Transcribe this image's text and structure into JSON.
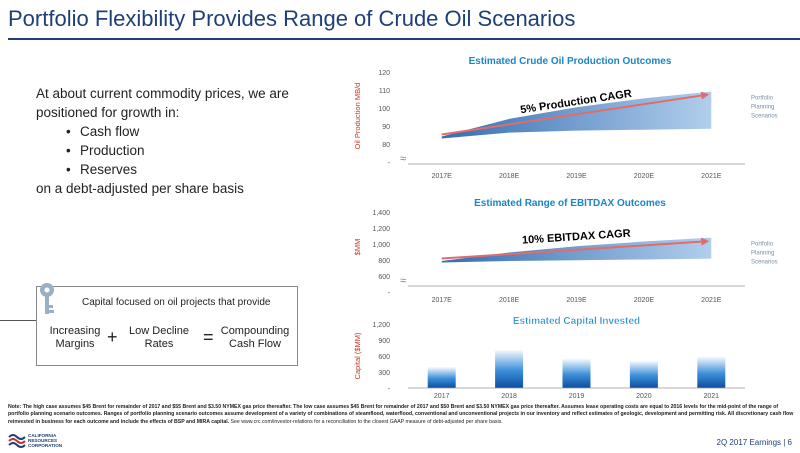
{
  "page": {
    "title": "Portfolio Flexibility Provides Range of Crude Oil Scenarios",
    "intro_line": "At about current commodity prices, we are positioned for growth in:",
    "bullets": [
      "Cash flow",
      "Production",
      "Reserves"
    ],
    "closing_line": "on a debt-adjusted per share basis",
    "key_caption": "Capital focused on oil projects that provide",
    "equation": {
      "term1": "Increasing Margins",
      "plus": "+",
      "term2": "Low Decline Rates",
      "equals": "=",
      "result": "Compounding Cash Flow"
    },
    "note_label": "Note:",
    "note_text": "The high case assumes $45 Brent for remainder of 2017 and $55 Brent and $3.50 NYMEX gas price thereafter. The low case assumes $45 Brent for remainder of 2017 and $50 Brent and $3.50 NYMEX gas price thereafter. Assumes lease operating costs are equal to 2016 levels for the mid-point of the range of portfolio planning scenario outcomes. Ranges of portfolio planning scenario outcomes assume development of a variety of combinations of steamflood, waterflood, conventional and unconventional projects in our inventory and reflect estimates of geologic, development and permitting risk. All discretionary cash flow reinvested in business for each outcome and include the effects of BSP and MIRA capital.",
    "note_tail": "See www.crc.com/investor-relations for a reconciliation to the closest GAAP measure of debt-adjusted per share basis.",
    "logo_text": "CALIFORNIA RESOURCES CORPORATION",
    "footer": "2Q 2017 Earnings | 6",
    "colors": {
      "navy": "#1f3f77",
      "accent_blue": "#1a86c7",
      "band": "#4a8fd0",
      "arrow": "#e06c6c"
    }
  },
  "chart_data": [
    {
      "type": "area",
      "title": "Estimated Crude Oil Production Outcomes",
      "ylabel": "Oil Production MB/d",
      "categories": [
        "2017E",
        "2018E",
        "2019E",
        "2020E",
        "2021E"
      ],
      "ylim": [
        75,
        120
      ],
      "yticks": [
        "120",
        "110",
        "100",
        "90",
        "80",
        "-"
      ],
      "band_low": [
        86,
        89,
        90,
        90.5,
        91
      ],
      "band_high": [
        87,
        96,
        102,
        106.5,
        110
      ],
      "annotation": "5% Production CAGR",
      "band_label": "Portfolio Planning Scenarios"
    },
    {
      "type": "area",
      "title": "Estimated Range of EBITDAX Outcomes",
      "ylabel": "$MM",
      "categories": [
        "2017E",
        "2018E",
        "2019E",
        "2020E",
        "2021E"
      ],
      "ylim": [
        500,
        1400
      ],
      "yticks": [
        "1,400",
        "1,200",
        "1,000",
        "800",
        "600",
        "-"
      ],
      "band_low": [
        750,
        770,
        780,
        790,
        800
      ],
      "band_high": [
        770,
        880,
        960,
        1020,
        1070
      ],
      "annotation": "10% EBITDAX CAGR",
      "band_label": "Portfolio Planning Scenarios"
    },
    {
      "type": "bar",
      "title": "Estimated Capital Invested",
      "ylabel": "Capital ($MM)",
      "categories": [
        "2017",
        "2018",
        "2019",
        "2020",
        "2021"
      ],
      "values": [
        400,
        730,
        560,
        520,
        600
      ],
      "ylim": [
        0,
        1200
      ],
      "yticks": [
        "1,200",
        "900",
        "600",
        "300",
        "-"
      ]
    }
  ]
}
